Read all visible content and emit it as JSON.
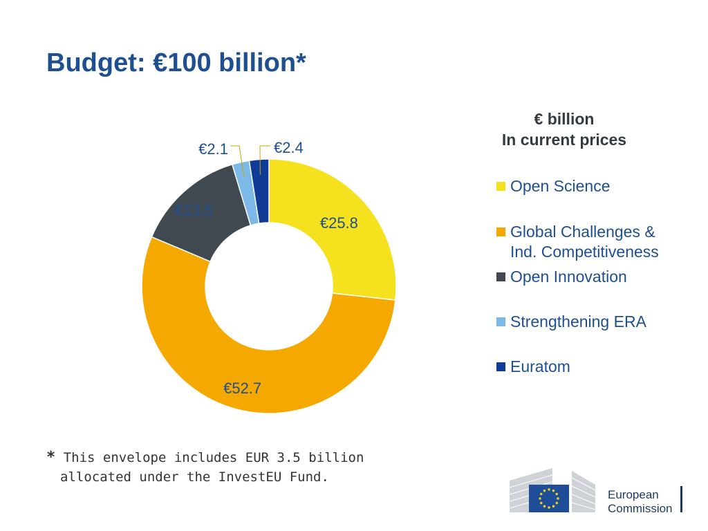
{
  "title": "Budget: €100 billion*",
  "units_label": {
    "line1": "€ billion",
    "line2": "In current prices"
  },
  "chart_data": {
    "type": "pie",
    "donut": true,
    "categories": [
      "Open Science",
      "Global Challenges & Ind. Competitiveness",
      "Open Innovation",
      "Strengthening ERA",
      "Euratom"
    ],
    "legend_labels": [
      "Open Science",
      "Global Challenges &\nInd. Competitiveness",
      "Open Innovation",
      "Strengthening ERA",
      "Euratom"
    ],
    "values": [
      25.8,
      52.7,
      13.5,
      2.1,
      2.4
    ],
    "data_labels": [
      "€25.8",
      "€52.7",
      "€13.5",
      "€2.1",
      "€2.4"
    ],
    "colors": [
      "#f5e11e",
      "#f5a800",
      "#404850",
      "#7cb8e8",
      "#103c96"
    ],
    "legend_position": "right"
  },
  "footnote": {
    "star": "*",
    "line1": "This envelope includes EUR 3.5 billion",
    "line2": "allocated under the InvestEU Fund."
  },
  "logo": {
    "line1": "European",
    "line2": "Commission"
  }
}
